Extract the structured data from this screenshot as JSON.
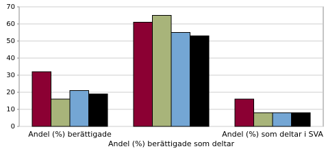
{
  "chart_data": {
    "type": "bar",
    "categories": [
      "Andel (%) berättigade",
      "Andel (%) berättigade som deltar",
      "Andel (%) som deltar i SVA"
    ],
    "series": [
      {
        "color": "#8b0033",
        "values": [
          32,
          61,
          16
        ]
      },
      {
        "color": "#a8b47a",
        "values": [
          16,
          65,
          8
        ]
      },
      {
        "color": "#74a6d4",
        "values": [
          21,
          55,
          8
        ]
      },
      {
        "color": "#000000",
        "values": [
          19,
          53,
          8
        ]
      }
    ],
    "ylim": [
      0,
      70
    ],
    "yticks": [
      0,
      10,
      20,
      30,
      40,
      50,
      60,
      70
    ],
    "grid": true
  }
}
